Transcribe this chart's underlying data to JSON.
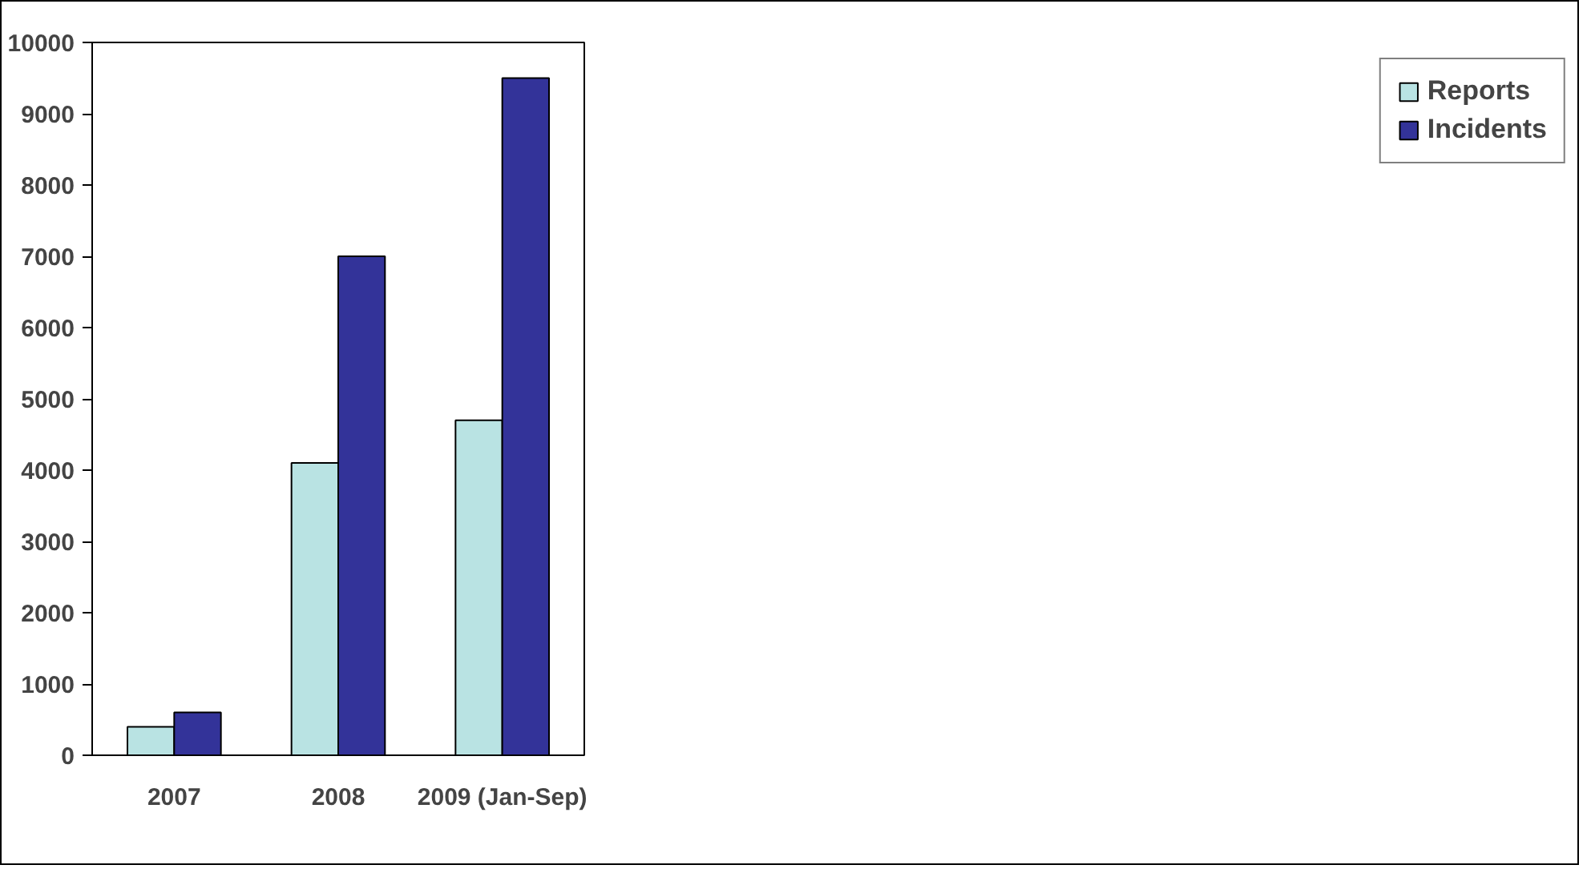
{
  "chart_data": {
    "type": "bar",
    "categories": [
      "2007",
      "2008",
      "2009 (Jan-Sep)"
    ],
    "series": [
      {
        "name": "Reports",
        "color": "#b9e3e3",
        "values": [
          400,
          4100,
          4700
        ]
      },
      {
        "name": "Incidents",
        "color": "#333399",
        "values": [
          600,
          7000,
          9500
        ]
      }
    ],
    "ylim": [
      0,
      10000
    ],
    "yticks": [
      0,
      1000,
      2000,
      3000,
      4000,
      5000,
      6000,
      7000,
      8000,
      9000,
      10000
    ],
    "grid": false,
    "legend": "right"
  }
}
